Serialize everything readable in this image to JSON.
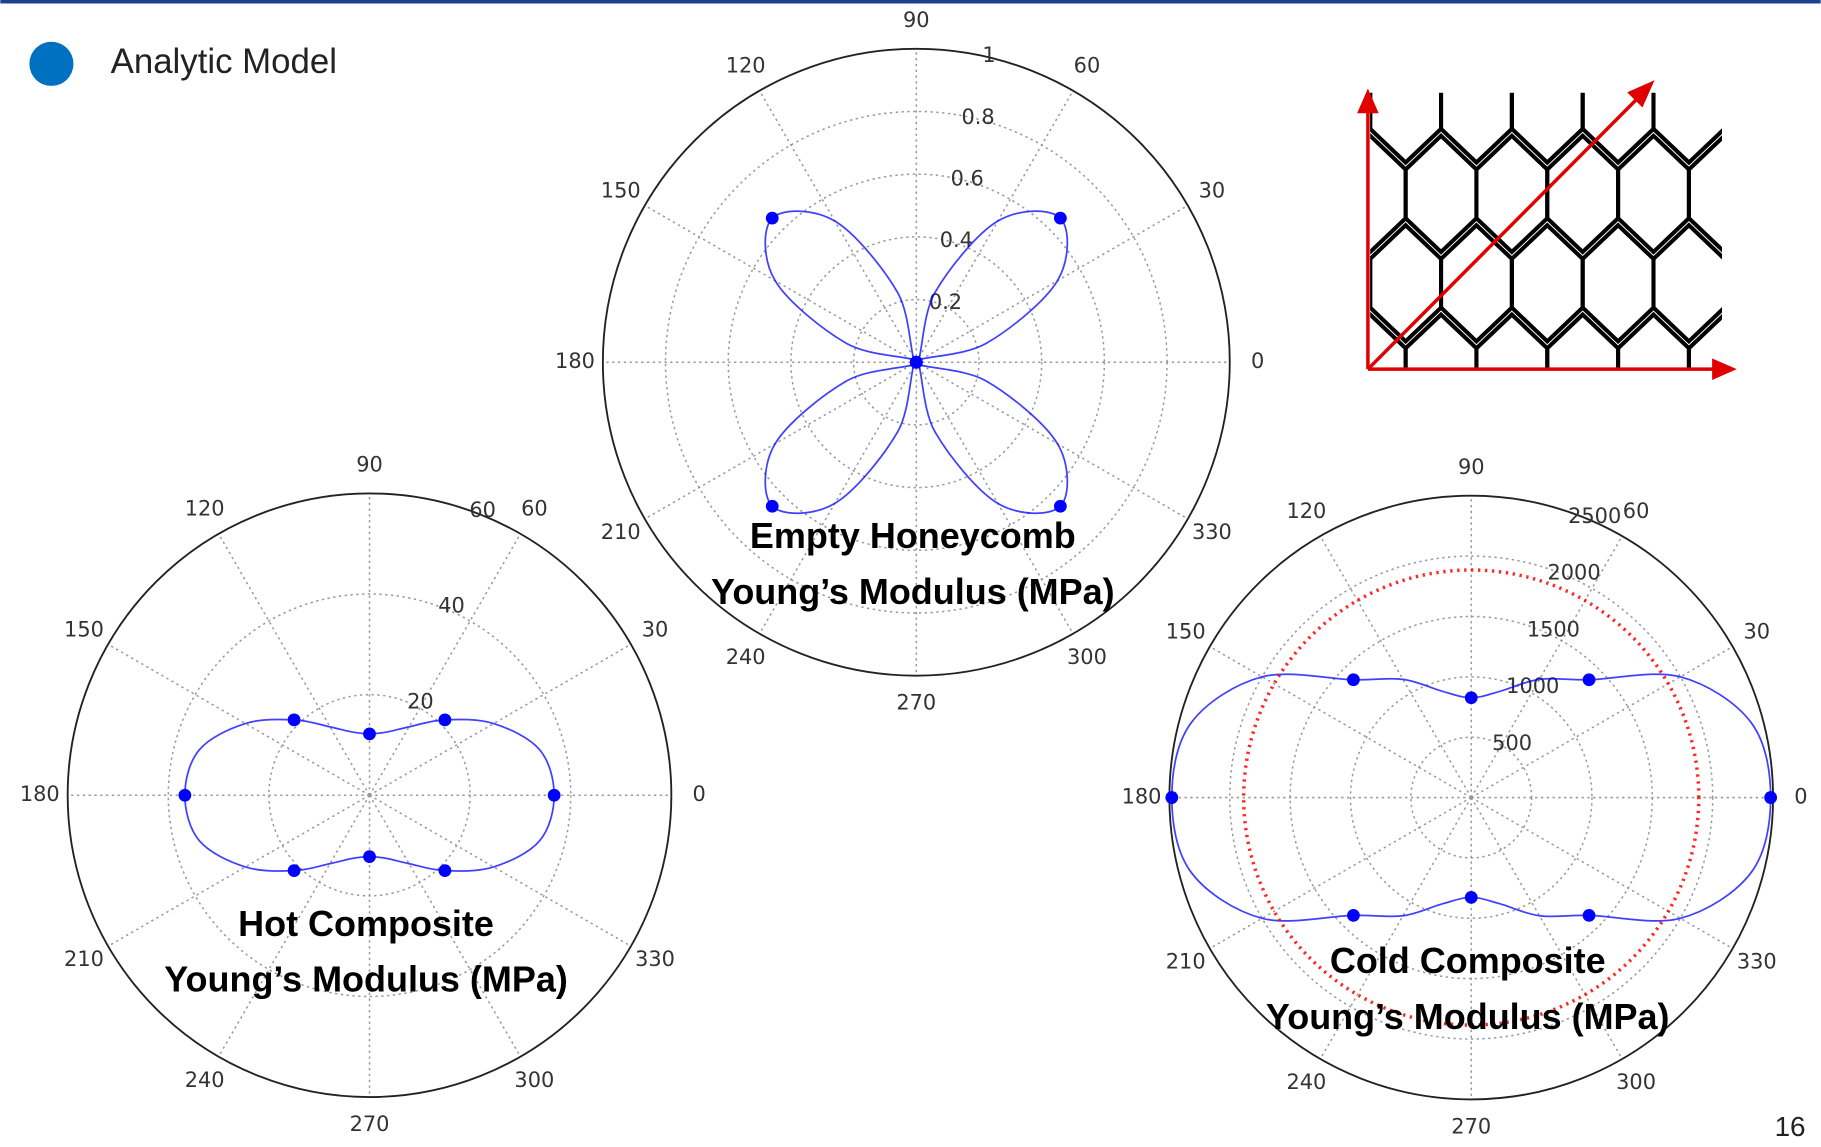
{
  "legend": {
    "label": "Analytic Model",
    "color": "#0070c0"
  },
  "page_number": "16",
  "chart_data": [
    {
      "type": "polar",
      "title": "Empty Honeycomb",
      "subtitle": "Young’s Modulus (MPa)",
      "rlim": [
        0,
        1
      ],
      "rticks": [
        0.2,
        0.4,
        0.6,
        0.8,
        1
      ],
      "thetaticks": [
        0,
        30,
        60,
        90,
        120,
        150,
        180,
        210,
        240,
        270,
        300,
        330
      ],
      "series": [
        {
          "color": "#0000ff",
          "marker_every": 3,
          "theta": [
            0,
            15,
            30,
            45,
            60,
            75,
            90,
            105,
            120,
            135,
            150,
            165,
            180,
            195,
            210,
            225,
            240,
            255,
            270,
            285,
            300,
            315,
            330,
            345
          ],
          "values": [
            0,
            0.23,
            0.52,
            0.65,
            0.52,
            0.23,
            0,
            0.23,
            0.52,
            0.65,
            0.52,
            0.23,
            0,
            0.23,
            0.52,
            0.65,
            0.52,
            0.23,
            0,
            0.23,
            0.52,
            0.65,
            0.52,
            0.23
          ]
        }
      ]
    },
    {
      "type": "polar",
      "title": "Hot Composite",
      "subtitle": "Young’s Modulus (MPa)",
      "rlim": [
        0,
        60
      ],
      "rticks": [
        20,
        40,
        60
      ],
      "thetaticks": [
        0,
        30,
        60,
        90,
        120,
        150,
        180,
        210,
        240,
        270,
        300,
        330
      ],
      "series": [
        {
          "color": "#0000ff",
          "marker_every": 3,
          "theta": [
            0,
            15,
            30,
            45,
            60,
            75,
            90,
            105,
            120,
            135,
            150,
            165,
            180,
            195,
            210,
            225,
            240,
            255,
            270,
            285,
            300,
            315,
            330,
            345
          ],
          "values": [
            36.7,
            35,
            28.5,
            21.2,
            15.7,
            13,
            12.2,
            13,
            15.7,
            21.2,
            28.5,
            35,
            36.7,
            35,
            28.5,
            21.2,
            15.7,
            13,
            12.2,
            13,
            15.7,
            21.2,
            28.5,
            35
          ]
        }
      ]
    },
    {
      "type": "polar",
      "title": "Cold Composite",
      "subtitle": "Young’s Modulus (MPa)",
      "rlim": [
        0,
        2500
      ],
      "rticks": [
        500,
        1000,
        1500,
        2000,
        2500
      ],
      "thetaticks": [
        0,
        30,
        60,
        90,
        120,
        150,
        180,
        210,
        240,
        270,
        300,
        330
      ],
      "series": [
        {
          "color": "#0000ff",
          "marker_every": 3,
          "theta": [
            0,
            15,
            30,
            45,
            60,
            75,
            90,
            105,
            120,
            135,
            150,
            165,
            180,
            195,
            210,
            225,
            240,
            255,
            270,
            285,
            300,
            315,
            330,
            345
          ],
          "values": [
            2480,
            2400,
            2000,
            1380,
            1130,
            910,
            827,
            910,
            1130,
            1380,
            2000,
            2400,
            2480,
            2400,
            2000,
            1380,
            1130,
            910,
            827,
            910,
            1130,
            1380,
            2000,
            2400
          ]
        },
        {
          "color": "#ff0000",
          "dash": "dotted",
          "theta": [
            0,
            15,
            30,
            45,
            60,
            75,
            90,
            105,
            120,
            135,
            150,
            165,
            180,
            195,
            210,
            225,
            240,
            255,
            270,
            285,
            300,
            315,
            330,
            345
          ],
          "values": [
            1885,
            1885,
            1885,
            1885,
            1885,
            1885,
            1885,
            1885,
            1885,
            1885,
            1885,
            1885,
            1885,
            1885,
            1885,
            1885,
            1885,
            1885,
            1885,
            1885,
            1885,
            1885,
            1885,
            1885
          ]
        }
      ]
    }
  ]
}
